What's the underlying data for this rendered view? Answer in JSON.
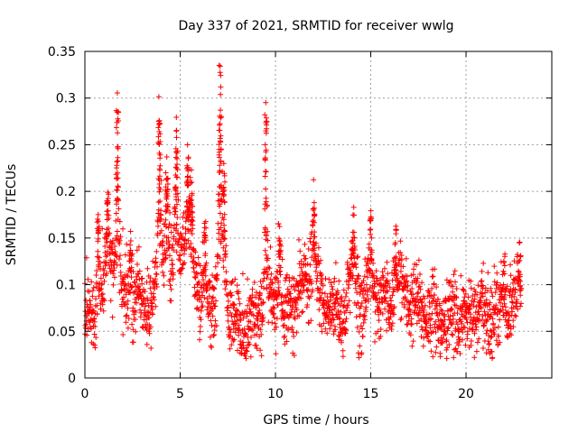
{
  "chart_data": {
    "type": "scatter",
    "title": "Day 337 of 2021, SRMTID for receiver wwlg",
    "xlabel": "GPS time / hours",
    "ylabel": "SRMTID / TECUs",
    "xlim": [
      0,
      24.5
    ],
    "ylim": [
      0,
      0.35
    ],
    "xticks": [
      0,
      5,
      10,
      15,
      20
    ],
    "xtick_labels": [
      "0",
      "5",
      "10",
      "15",
      "20"
    ],
    "yticks": [
      0,
      0.05,
      0.1,
      0.15,
      0.2,
      0.25,
      0.3,
      0.35
    ],
    "ytick_labels": [
      "0",
      "0.05",
      "0.1",
      "0.15",
      "0.2",
      "0.25",
      "0.3",
      "0.35"
    ],
    "grid": true,
    "marker": "+",
    "marker_color": "#ff0000",
    "series": [
      {
        "name": "SRMTID",
        "points_per_hour": 100,
        "hours": [
          0,
          0.5,
          1,
          1.5,
          2,
          2.5,
          3,
          3.5,
          4,
          4.5,
          5,
          5.5,
          6,
          6.5,
          7,
          7.5,
          8,
          8.5,
          9,
          9.5,
          10,
          10.5,
          11,
          11.5,
          12,
          12.5,
          13,
          13.5,
          14,
          14.5,
          15,
          15.5,
          16,
          16.5,
          17,
          17.5,
          18,
          18.5,
          19,
          19.5,
          20,
          20.5,
          21,
          21.5,
          22,
          22.5,
          23
        ],
        "baseline_by_hour": [
          0.07,
          0.06,
          0.11,
          0.13,
          0.1,
          0.08,
          0.085,
          0.075,
          0.13,
          0.12,
          0.14,
          0.13,
          0.09,
          0.08,
          0.1,
          0.08,
          0.055,
          0.05,
          0.06,
          0.08,
          0.09,
          0.07,
          0.085,
          0.1,
          0.11,
          0.08,
          0.075,
          0.07,
          0.1,
          0.085,
          0.09,
          0.08,
          0.085,
          0.1,
          0.085,
          0.075,
          0.07,
          0.065,
          0.06,
          0.07,
          0.06,
          0.07,
          0.065,
          0.07,
          0.075,
          0.08,
          0.09
        ],
        "spikes": [
          {
            "hour": 0.7,
            "peak": 0.18
          },
          {
            "hour": 1.2,
            "peak": 0.19
          },
          {
            "hour": 1.7,
            "peak": 0.29
          },
          {
            "hour": 2.4,
            "peak": 0.155
          },
          {
            "hour": 3.9,
            "peak": 0.28
          },
          {
            "hour": 4.3,
            "peak": 0.22
          },
          {
            "hour": 4.8,
            "peak": 0.27
          },
          {
            "hour": 5.4,
            "peak": 0.25
          },
          {
            "hour": 5.6,
            "peak": 0.21
          },
          {
            "hour": 6.3,
            "peak": 0.165
          },
          {
            "hour": 7.1,
            "peak": 0.34
          },
          {
            "hour": 7.3,
            "peak": 0.22
          },
          {
            "hour": 9.5,
            "peak": 0.29
          },
          {
            "hour": 10.2,
            "peak": 0.17
          },
          {
            "hour": 12.0,
            "peak": 0.185
          },
          {
            "hour": 14.1,
            "peak": 0.16
          },
          {
            "hour": 15.0,
            "peak": 0.18
          },
          {
            "hour": 16.3,
            "peak": 0.16
          },
          {
            "hour": 22.0,
            "peak": 0.125
          },
          {
            "hour": 22.8,
            "peak": 0.12
          }
        ],
        "x_start": 0,
        "x_end": 22.9,
        "approx_range": [
          0.02,
          0.34
        ]
      }
    ]
  }
}
